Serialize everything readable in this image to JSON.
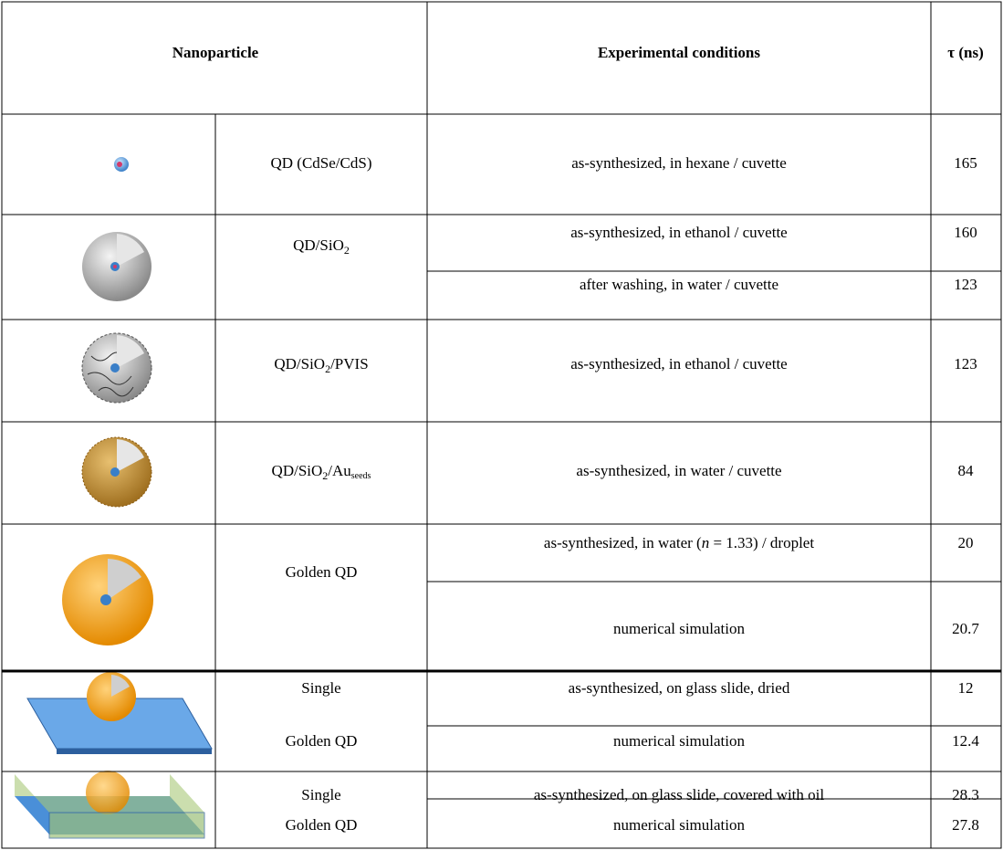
{
  "header": {
    "nanoparticle": "Nanoparticle",
    "conditions": "Experimental conditions",
    "tau": "τ (ns)"
  },
  "rows": [
    {
      "name": [
        [
          {
            "text": "QD (CdSe/CdS)"
          }
        ]
      ],
      "measurements": [
        {
          "conditions": [
            {
              "text": "as-synthesized, in hexane / cuvette"
            }
          ],
          "tau": 165
        }
      ]
    },
    {
      "name": [
        [
          {
            "text": "QD/SiO"
          },
          {
            "sub": "2"
          }
        ]
      ],
      "measurements": [
        {
          "conditions": [
            {
              "text": "as-synthesized, in ethanol / cuvette"
            }
          ],
          "tau": 160
        },
        {
          "conditions": [
            {
              "text": "after washing, in water / cuvette"
            }
          ],
          "tau": 123
        }
      ]
    },
    {
      "name": [
        [
          {
            "text": "QD/SiO"
          },
          {
            "sub": "2"
          },
          {
            "text": "/PVIS"
          }
        ]
      ],
      "measurements": [
        {
          "conditions": [
            {
              "text": "as-synthesized, in ethanol / cuvette"
            }
          ],
          "tau": 123
        }
      ]
    },
    {
      "name": [
        [
          {
            "text": "QD/SiO"
          },
          {
            "sub": "2"
          },
          {
            "text": "/Au"
          },
          {
            "sub": "seeds"
          }
        ]
      ],
      "measurements": [
        {
          "conditions": [
            {
              "text": "as-synthesized, in water / cuvette"
            }
          ],
          "tau": 84
        }
      ]
    },
    {
      "name": [
        [
          {
            "text": "Golden QD"
          }
        ]
      ],
      "measurements": [
        {
          "conditions": [
            {
              "text": "as-synthesized, in water ("
            },
            {
              "italic": "n"
            },
            {
              "text": " = 1.33) / droplet"
            }
          ],
          "tau": 20
        },
        {
          "conditions": [
            {
              "text": "numerical simulation"
            }
          ],
          "tau": 20.7
        }
      ]
    },
    {
      "name": [
        [
          {
            "text": "Single"
          }
        ],
        [
          {
            "text": "Golden QD"
          }
        ]
      ],
      "measurements": [
        {
          "conditions": [
            {
              "text": "as-synthesized, on glass slide, dried"
            }
          ],
          "tau": 12
        },
        {
          "conditions": [
            {
              "text": "numerical simulation"
            }
          ],
          "tau": 12.4
        }
      ]
    },
    {
      "name": [
        [
          {
            "text": "Single"
          }
        ],
        [
          {
            "text": "Golden QD"
          }
        ]
      ],
      "measurements": [
        {
          "conditions": [
            {
              "text": "as-synthesized, on glass slide, covered with oil"
            }
          ],
          "tau": 28.3
        },
        {
          "conditions": [
            {
              "text": "numerical simulation"
            }
          ],
          "tau": 27.8
        }
      ]
    }
  ]
}
